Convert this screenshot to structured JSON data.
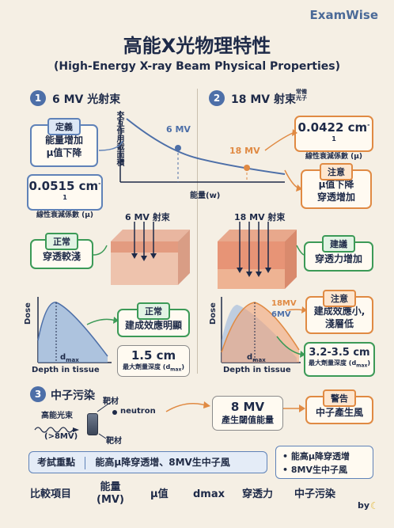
{
  "brand": "ExamWise",
  "title": "高能X光物理特性",
  "subtitle": "(High-Energy X-ray Beam Physical Properties)",
  "section1": {
    "number": "1",
    "title": "6 MV 光射束",
    "definition_tag": "定義",
    "definition_lines": [
      "能量增加",
      "μ值下降"
    ],
    "coef_value": "0.0515 cm",
    "coef_exp": "-1",
    "coef_label": "線性衰減係數 (μ)",
    "beam_label": "6 MV 射束",
    "normal_tag": "正常",
    "normal_text": "穿透較淺",
    "buildup_tag": "正常",
    "buildup_text": "建成效應明顯",
    "dmax_value": "1.5 cm",
    "dmax_label_prefix": "最大劑量深度 (d",
    "dmax_label_sub": "max",
    "dmax_label_suffix": ")"
  },
  "section2": {
    "number": "2",
    "title": "18 MV 射束",
    "title_note": "常備\n光子",
    "coef_value": "0.0422 cm",
    "coef_exp": "-1",
    "coef_label": "線性衰減係數 (μ)",
    "caution_tag": "注意",
    "caution_lines": [
      "μ值下降",
      "穿透增加"
    ],
    "beam_label": "18 MV 射束",
    "advice_tag": "建議",
    "advice_text": "穿透力增加",
    "caution2_tag": "注意",
    "caution2_lines": [
      "建成效應小,",
      "淺層低"
    ],
    "dmax_value": "3.2-3.5 cm",
    "dmax_label_prefix": "最大劑量深度 (d",
    "dmax_label_sub": "max",
    "dmax_label_suffix": ")"
  },
  "graph": {
    "y_label": "交互作用截面積",
    "x_label": "能量(w)",
    "point_6mv": "6 MV",
    "point_18mv": "18 MV"
  },
  "pdd": {
    "y_label": "Dose",
    "x_label": "Depth in tissue",
    "dmax_marker": "d",
    "dmax_marker_sub": "max",
    "legend_18": "18MV",
    "legend_6": "6MV"
  },
  "section3": {
    "number": "3",
    "title": "中子污染",
    "source_label": "高能光束",
    "source_sub": "(>8MV)",
    "target_top": "靶材",
    "neutron": "neutron",
    "target_bottom": "靶材",
    "threshold_value": "8 MV",
    "threshold_text": "產生閾值能量",
    "warning_tag": "警告",
    "warning_text": "中子產生風"
  },
  "bottom": {
    "focus_label": "考試重點",
    "focus_text": "能高μ降穿透增、8MV生中子風",
    "note_lines": [
      "• 能高μ降穿透增",
      "• 8MV生中子風"
    ]
  },
  "compare_row": [
    {
      "label": "比較項目"
    },
    {
      "label": "能量\n(MV)"
    },
    {
      "label": "μ值"
    },
    {
      "label": "dmax"
    },
    {
      "label": "穿透力"
    },
    {
      "label": "中子污染"
    }
  ],
  "footer": "by",
  "colors": {
    "accent_blue": "#4d6fa8",
    "accent_orange": "#e08a43",
    "accent_green": "#3c9a57"
  }
}
